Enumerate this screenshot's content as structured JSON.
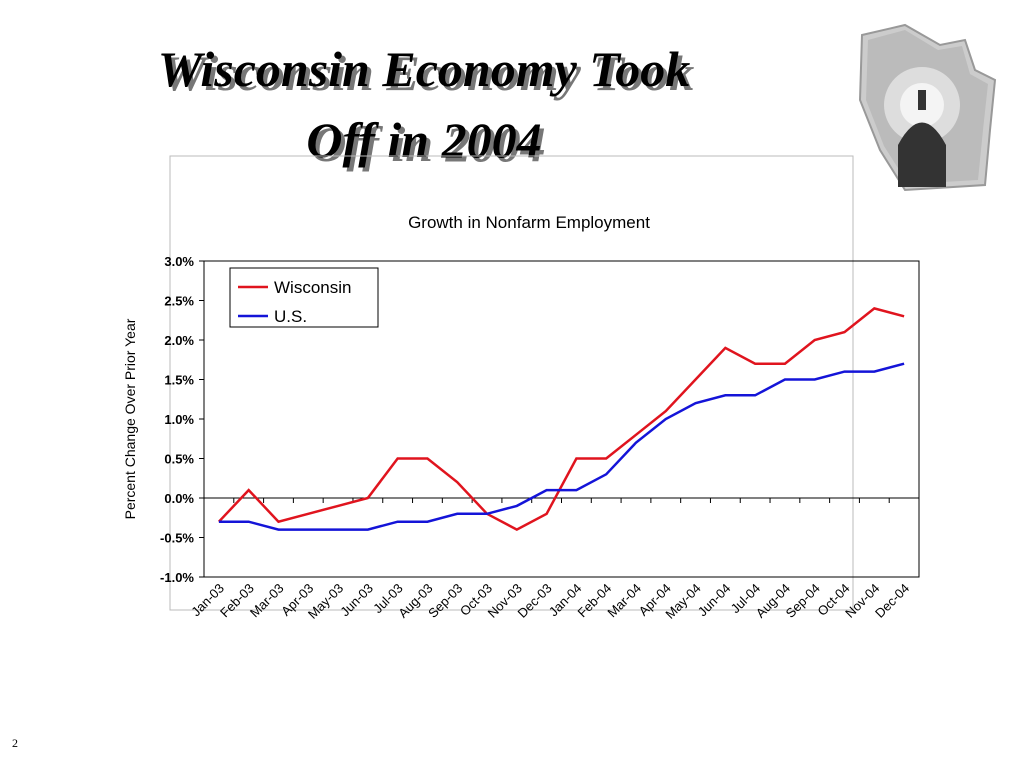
{
  "slide": {
    "title_lines": [
      "Wisconsin Economy Took",
      "Off in 2004"
    ],
    "page_number": 2
  },
  "chart_data": {
    "type": "line",
    "title": "Growth in Nonfarm Employment",
    "y_label": "Percent Change Over Prior Year",
    "categories": [
      "Jan-03",
      "Feb-03",
      "Mar-03",
      "Apr-03",
      "May-03",
      "Jun-03",
      "Jul-03",
      "Aug-03",
      "Sep-03",
      "Oct-03",
      "Nov-03",
      "Dec-03",
      "Jan-04",
      "Feb-04",
      "Mar-04",
      "Apr-04",
      "May-04",
      "Jun-04",
      "Jul-04",
      "Aug-04",
      "Sep-04",
      "Oct-04",
      "Nov-04",
      "Dec-04"
    ],
    "series": [
      {
        "name": "Wisconsin",
        "color": "#e0141e",
        "values": [
          -0.3,
          0.1,
          -0.3,
          -0.2,
          -0.1,
          0.0,
          0.5,
          0.5,
          0.2,
          -0.2,
          -0.4,
          -0.2,
          0.5,
          0.5,
          0.8,
          1.1,
          1.5,
          1.9,
          1.7,
          1.7,
          2.0,
          2.1,
          2.4,
          2.3
        ]
      },
      {
        "name": "U.S.",
        "color": "#1414d8",
        "values": [
          -0.3,
          -0.3,
          -0.4,
          -0.4,
          -0.4,
          -0.4,
          -0.3,
          -0.3,
          -0.2,
          -0.2,
          -0.1,
          0.1,
          0.1,
          0.3,
          0.7,
          1.0,
          1.2,
          1.3,
          1.3,
          1.5,
          1.5,
          1.6,
          1.6,
          1.7
        ]
      }
    ],
    "ylim": [
      -1.0,
      3.0
    ],
    "yticks": [
      {
        "value": -1.0,
        "label": "-1.0%"
      },
      {
        "value": -0.5,
        "label": "-0.5%"
      },
      {
        "value": 0.0,
        "label": "0.0%"
      },
      {
        "value": 0.5,
        "label": "0.5%"
      },
      {
        "value": 1.0,
        "label": "1.0%"
      },
      {
        "value": 1.5,
        "label": "1.5%"
      },
      {
        "value": 2.0,
        "label": "2.0%"
      },
      {
        "value": 2.5,
        "label": "2.5%"
      },
      {
        "value": 3.0,
        "label": "3.0%"
      }
    ],
    "grid": false,
    "legend": "upper left"
  }
}
